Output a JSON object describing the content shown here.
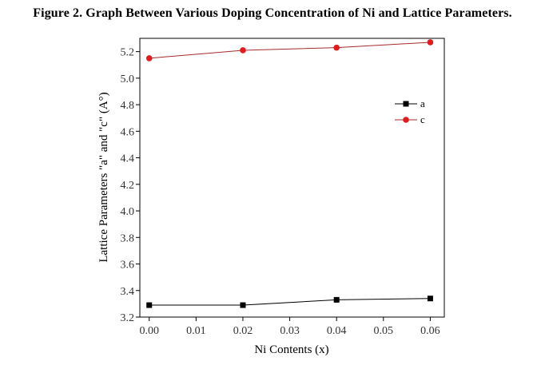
{
  "caption": "Figure 2. Graph Between Various Doping Concentration of Ni and Lattice Parameters.",
  "chart_data": {
    "type": "line",
    "title": "",
    "xlabel": "Ni Contents (x)",
    "ylabel": "Lattice Parameters \"a\" and \"c\" (A°)",
    "xlim": [
      -0.002,
      0.063
    ],
    "ylim": [
      3.2,
      5.3
    ],
    "xticks": [
      0.0,
      0.01,
      0.02,
      0.03,
      0.04,
      0.05,
      0.06
    ],
    "xtick_labels": [
      "0.00",
      "0.01",
      "0.02",
      "0.03",
      "0.04",
      "0.05",
      "0.06"
    ],
    "yticks": [
      3.2,
      3.4,
      3.6,
      3.8,
      4.0,
      4.2,
      4.4,
      4.6,
      4.8,
      5.0,
      5.2
    ],
    "ytick_labels": [
      "3.2",
      "3.4",
      "3.6",
      "3.8",
      "4.0",
      "4.2",
      "4.4",
      "4.6",
      "4.8",
      "5.0",
      "5.2"
    ],
    "x": [
      0.0,
      0.02,
      0.04,
      0.06
    ],
    "series": [
      {
        "name": "a",
        "values": [
          3.29,
          3.29,
          3.33,
          3.34
        ],
        "color": "#000000",
        "marker": "square",
        "line_color": "#000000"
      },
      {
        "name": "c",
        "values": [
          5.15,
          5.21,
          5.23,
          5.27
        ],
        "color": "#e41a1c",
        "marker": "circle",
        "line_color": "#a52a2a"
      }
    ],
    "legend_position": "top-right",
    "grid": false
  }
}
